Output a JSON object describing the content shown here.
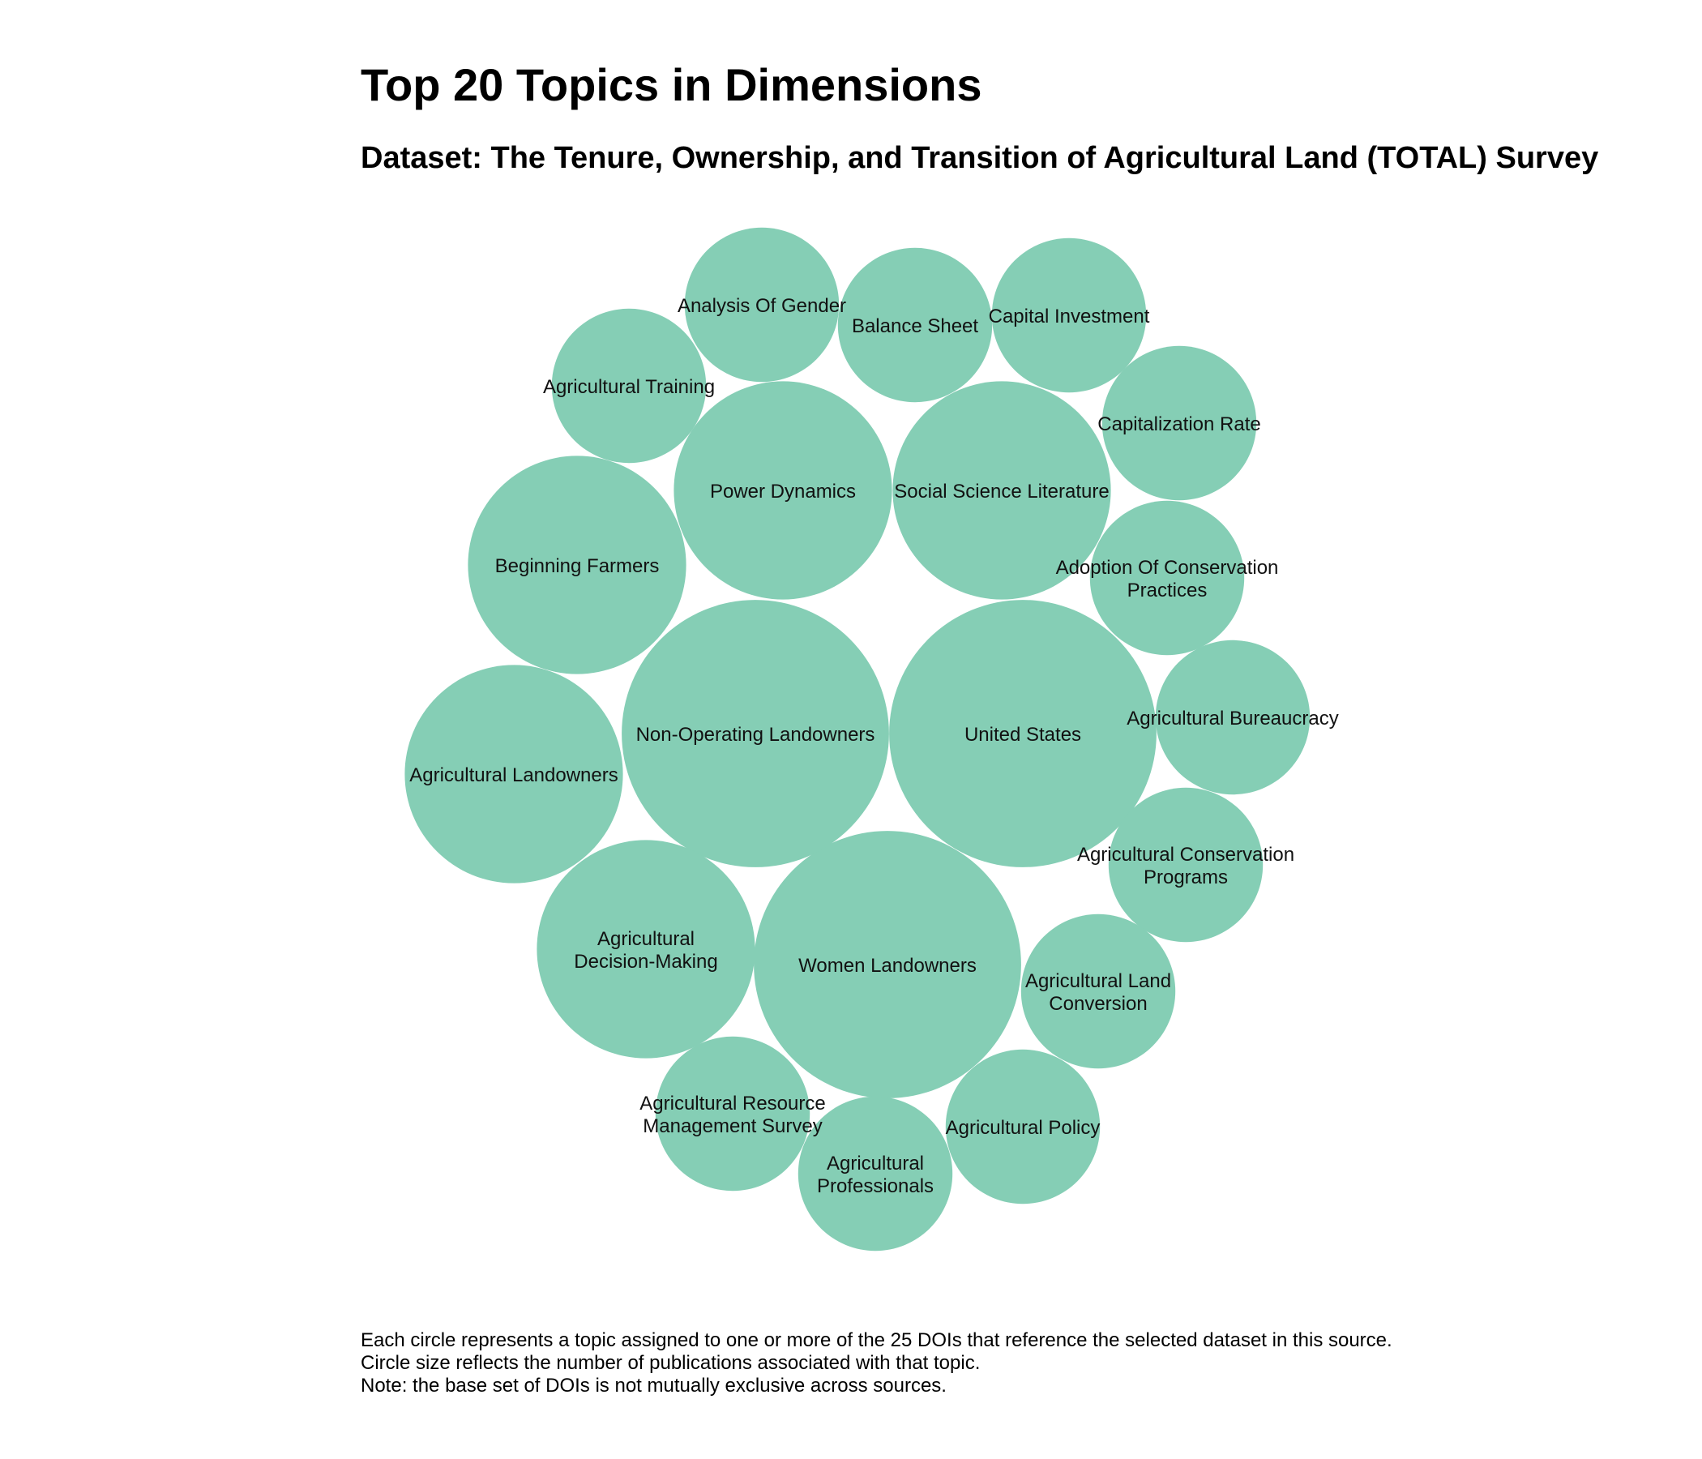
{
  "chart_data": {
    "type": "bubble",
    "title": "Top 20 Topics in Dimensions",
    "subtitle": "Dataset: The Tenure, Ownership, and Transition of Agricultural Land (TOTAL) Survey",
    "bubble_color": "#85CEB5",
    "notes": [
      "Each circle represents a topic assigned to one or more of the 25 DOIs that reference the selected dataset in this source.",
      "Circle size reflects the number of publications associated with that topic.",
      "Note: the base set of DOIs is not mutually exclusive across sources."
    ],
    "topics": [
      {
        "label": "Women Landowners",
        "lines": [
          "Women Landowners"
        ],
        "relative_size": 6
      },
      {
        "label": "Non-Operating Landowners",
        "lines": [
          "Non-Operating Landowners"
        ],
        "relative_size": 6
      },
      {
        "label": "United States",
        "lines": [
          "United States"
        ],
        "relative_size": 6
      },
      {
        "label": "Social Science Literature",
        "lines": [
          "Social Science Literature"
        ],
        "relative_size": 4
      },
      {
        "label": "Power Dynamics",
        "lines": [
          "Power Dynamics"
        ],
        "relative_size": 4
      },
      {
        "label": "Beginning Farmers",
        "lines": [
          "Beginning Farmers"
        ],
        "relative_size": 4
      },
      {
        "label": "Agricultural Landowners",
        "lines": [
          "Agricultural Landowners"
        ],
        "relative_size": 4
      },
      {
        "label": "Agricultural Decision-Making",
        "lines": [
          "Agricultural",
          "Decision-Making"
        ],
        "relative_size": 4
      },
      {
        "label": "Analysis Of Gender",
        "lines": [
          "Analysis Of Gender"
        ],
        "relative_size": 2
      },
      {
        "label": "Balance Sheet",
        "lines": [
          "Balance Sheet"
        ],
        "relative_size": 2
      },
      {
        "label": "Capital Investment",
        "lines": [
          "Capital Investment"
        ],
        "relative_size": 2
      },
      {
        "label": "Agricultural Training",
        "lines": [
          "Agricultural Training"
        ],
        "relative_size": 2
      },
      {
        "label": "Capitalization Rate",
        "lines": [
          "Capitalization Rate"
        ],
        "relative_size": 2
      },
      {
        "label": "Adoption Of Conservation Practices",
        "lines": [
          "Adoption Of Conservation",
          "Practices"
        ],
        "relative_size": 2
      },
      {
        "label": "Agricultural Bureaucracy",
        "lines": [
          "Agricultural Bureaucracy"
        ],
        "relative_size": 2
      },
      {
        "label": "Agricultural Conservation Programs",
        "lines": [
          "Agricultural Conservation",
          "Programs"
        ],
        "relative_size": 2
      },
      {
        "label": "Agricultural Land Conversion",
        "lines": [
          "Agricultural Land",
          "Conversion"
        ],
        "relative_size": 2
      },
      {
        "label": "Agricultural Policy",
        "lines": [
          "Agricultural Policy"
        ],
        "relative_size": 2
      },
      {
        "label": "Agricultural Resource Management Survey",
        "lines": [
          "Agricultural Resource",
          "Management Survey"
        ],
        "relative_size": 2
      },
      {
        "label": "Agricultural Professionals",
        "lines": [
          "Agricultural",
          "Professionals"
        ],
        "relative_size": 2
      }
    ]
  }
}
